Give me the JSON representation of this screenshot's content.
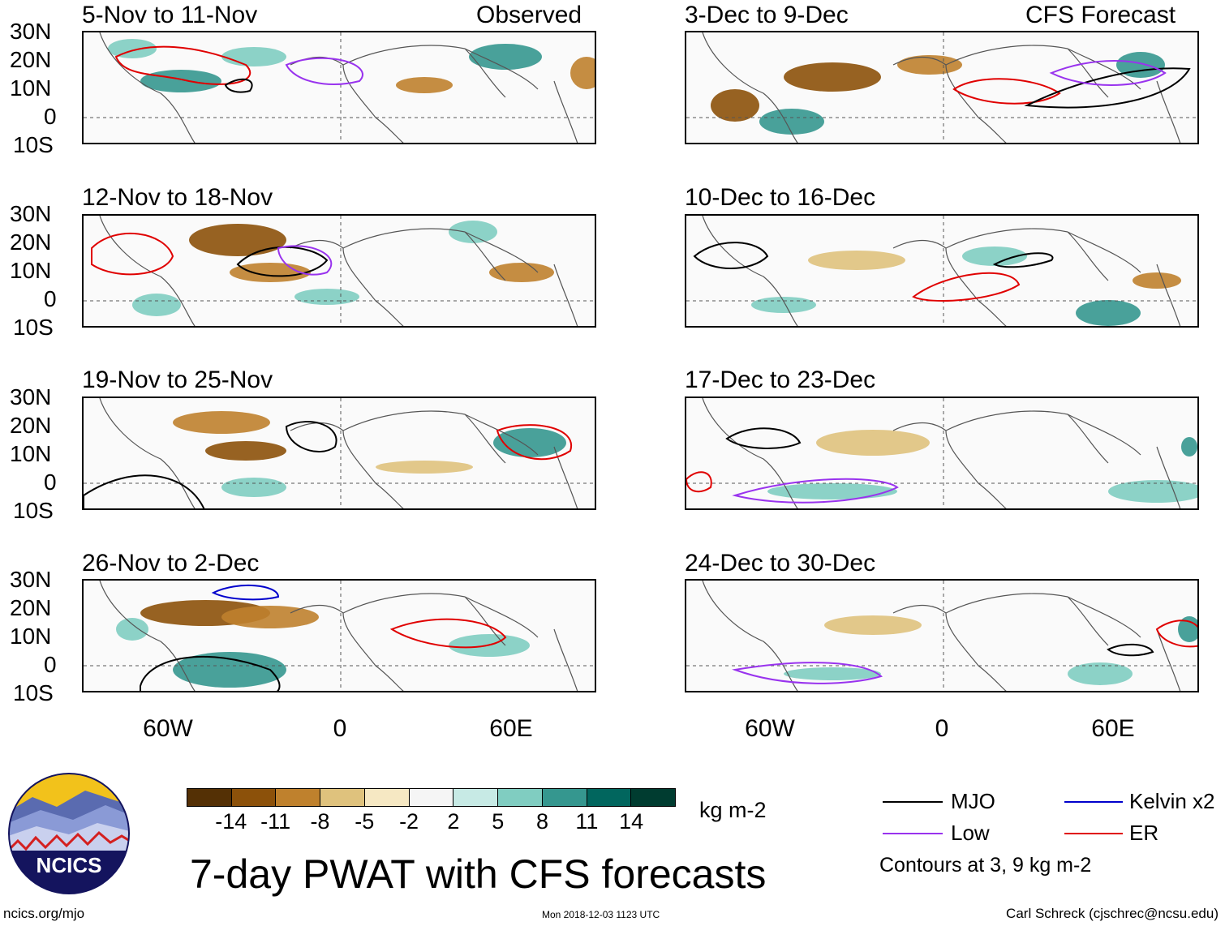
{
  "figure": {
    "title": "7-day PWAT with CFS forecasts",
    "observed_label": "Observed",
    "forecast_label": "CFS Forecast"
  },
  "panels": {
    "observed": [
      {
        "title": "5-Nov to 11-Nov"
      },
      {
        "title": "12-Nov to 18-Nov"
      },
      {
        "title": "19-Nov to 25-Nov"
      },
      {
        "title": "26-Nov to 2-Dec"
      }
    ],
    "forecast": [
      {
        "title": "3-Dec to 9-Dec"
      },
      {
        "title": "10-Dec to 16-Dec"
      },
      {
        "title": "17-Dec to 23-Dec"
      },
      {
        "title": "24-Dec to 30-Dec"
      }
    ]
  },
  "axes": {
    "lat_labels": [
      "30N",
      "20N",
      "10N",
      "0",
      "10S"
    ],
    "lon_labels": [
      "60W",
      "0",
      "60E"
    ]
  },
  "colorbar": {
    "units": "kg m-2",
    "labels": [
      "-14",
      "-11",
      "-8",
      "-5",
      "-2",
      "2",
      "5",
      "8",
      "11",
      "14"
    ],
    "colors": [
      "#543005",
      "#8c510a",
      "#bf812d",
      "#dfc27d",
      "#f6e8c3",
      "#f5f5f5",
      "#c7eae5",
      "#80cdc1",
      "#35978f",
      "#01665e",
      "#003c30"
    ]
  },
  "legend": {
    "items": [
      {
        "label": "MJO",
        "color": "#000000"
      },
      {
        "label": "Kelvin x2",
        "color": "#0000cc"
      },
      {
        "label": "Low",
        "color": "#9933ee"
      },
      {
        "label": "ER",
        "color": "#e00000"
      }
    ],
    "contours_note": "Contours at 3, 9 kg m-2"
  },
  "logo": {
    "text": "NCICS"
  },
  "footer": {
    "left": "ncics.org/mjo",
    "middle": "Mon 2018-12-03 1123 UTC",
    "right": "Carl Schreck (cjschrec@ncsu.edu)"
  },
  "map_colors": {
    "dry": "#bf812d",
    "very_dry": "#8c510a",
    "light_dry": "#dfc27d",
    "moist": "#80cdc1",
    "very_moist": "#35978f",
    "coast": "#555555"
  }
}
